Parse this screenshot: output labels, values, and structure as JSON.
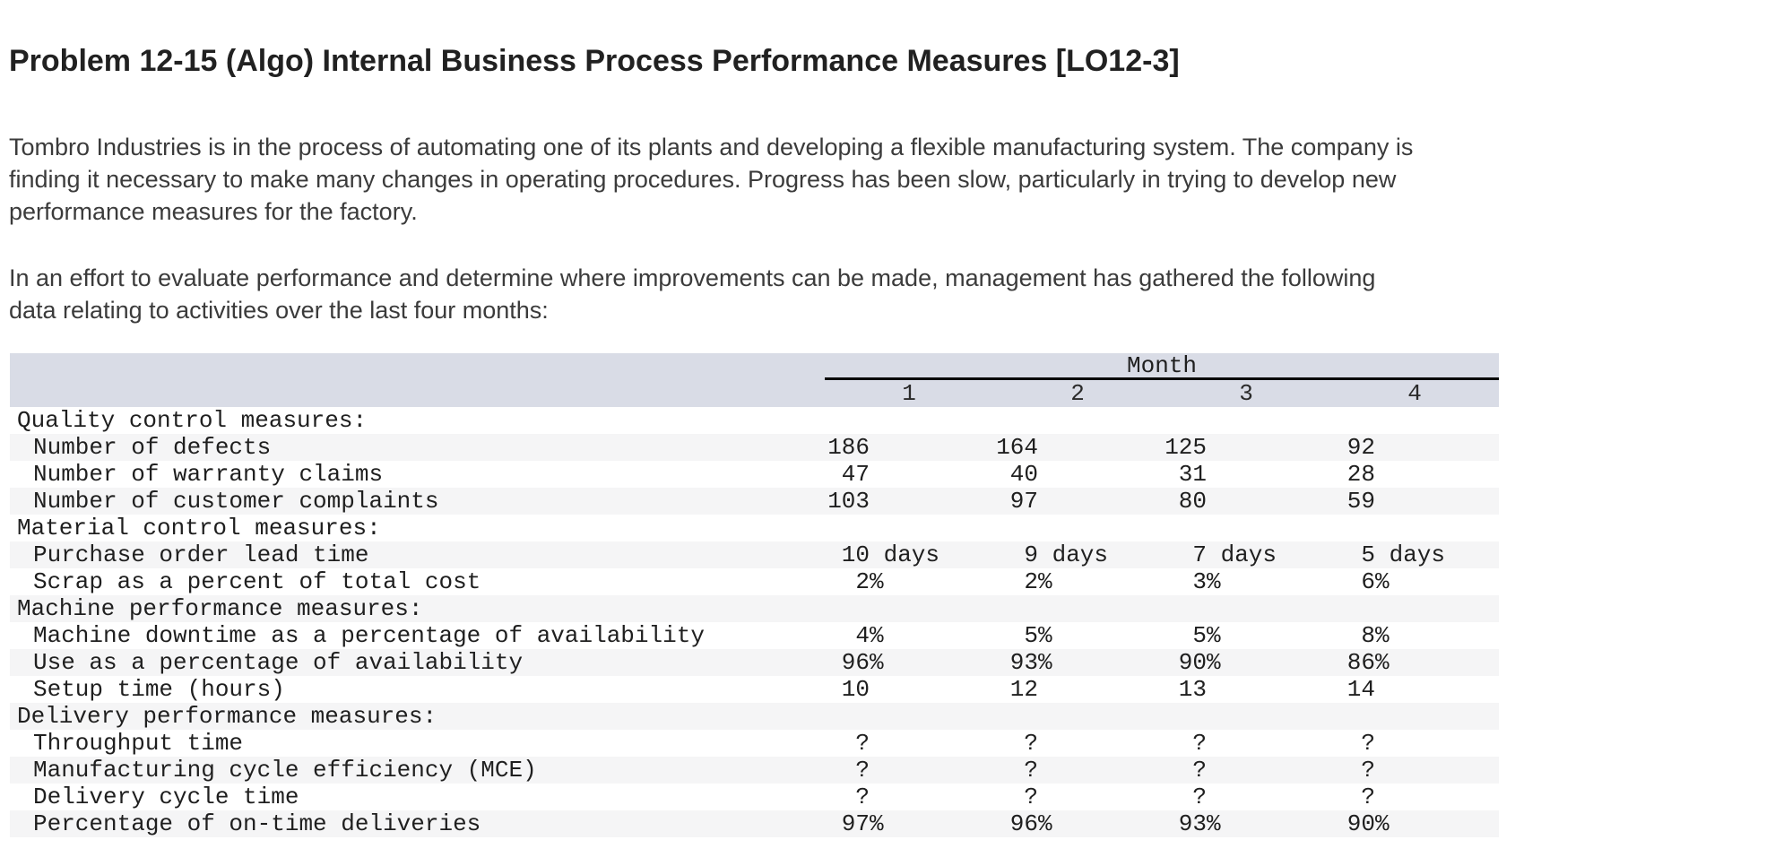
{
  "page": {
    "title": "Problem 12-15 (Algo) Internal Business Process Performance Measures [LO12-3]",
    "paragraph1": "Tombro Industries is in the process of automating one of its plants and developing a flexible manufacturing system. The company is\nfinding it necessary to make many changes in operating procedures. Progress has been slow, particularly in trying to develop new\nperformance measures for the factory.",
    "paragraph2": "In an effort to evaluate performance and determine where improvements can be made, management has gathered the following\ndata relating to activities over the last four months:"
  },
  "colors": {
    "header_background": "#d9dce6",
    "stripe_background": "#f5f5f6",
    "month_underline": "#0a0a0a",
    "title_text": "#212121",
    "body_text": "#3b3b3b",
    "table_text": "#1f1f1f"
  },
  "table": {
    "month_label": "Month",
    "month_columns": [
      "1",
      "2",
      "3",
      "4"
    ],
    "rows": [
      {
        "type": "category",
        "label": "Quality control measures:",
        "values": []
      },
      {
        "type": "item",
        "label": "Number of defects",
        "values": [
          {
            "num": "186",
            "unit": ""
          },
          {
            "num": "164",
            "unit": ""
          },
          {
            "num": "125",
            "unit": ""
          },
          {
            "num": "92",
            "unit": ""
          }
        ]
      },
      {
        "type": "item",
        "label": "Number of warranty claims",
        "values": [
          {
            "num": "47",
            "unit": ""
          },
          {
            "num": "40",
            "unit": ""
          },
          {
            "num": "31",
            "unit": ""
          },
          {
            "num": "28",
            "unit": ""
          }
        ]
      },
      {
        "type": "item",
        "label": "Number of customer complaints",
        "values": [
          {
            "num": "103",
            "unit": ""
          },
          {
            "num": "97",
            "unit": ""
          },
          {
            "num": "80",
            "unit": ""
          },
          {
            "num": "59",
            "unit": ""
          }
        ]
      },
      {
        "type": "category",
        "label": "Material control measures:",
        "values": []
      },
      {
        "type": "item",
        "label": "Purchase order lead time",
        "values": [
          {
            "num": "10",
            "unit": " days"
          },
          {
            "num": "9",
            "unit": " days"
          },
          {
            "num": "7",
            "unit": " days"
          },
          {
            "num": "5",
            "unit": " days"
          }
        ]
      },
      {
        "type": "item",
        "label": "Scrap as a percent of total cost",
        "values": [
          {
            "num": "2",
            "unit": "%"
          },
          {
            "num": "2",
            "unit": "%"
          },
          {
            "num": "3",
            "unit": "%"
          },
          {
            "num": "6",
            "unit": "%"
          }
        ]
      },
      {
        "type": "category",
        "label": "Machine performance measures:",
        "values": []
      },
      {
        "type": "item",
        "label": "Machine downtime as a percentage of availability",
        "values": [
          {
            "num": "4",
            "unit": "%"
          },
          {
            "num": "5",
            "unit": "%"
          },
          {
            "num": "5",
            "unit": "%"
          },
          {
            "num": "8",
            "unit": "%"
          }
        ]
      },
      {
        "type": "item",
        "label": "Use as a percentage of availability",
        "values": [
          {
            "num": "96",
            "unit": "%"
          },
          {
            "num": "93",
            "unit": "%"
          },
          {
            "num": "90",
            "unit": "%"
          },
          {
            "num": "86",
            "unit": "%"
          }
        ]
      },
      {
        "type": "item",
        "label": "Setup time (hours)",
        "values": [
          {
            "num": "10",
            "unit": ""
          },
          {
            "num": "12",
            "unit": ""
          },
          {
            "num": "13",
            "unit": ""
          },
          {
            "num": "14",
            "unit": ""
          }
        ]
      },
      {
        "type": "category",
        "label": "Delivery performance measures:",
        "values": []
      },
      {
        "type": "item",
        "label": "Throughput time",
        "values": [
          {
            "num": "?",
            "unit": ""
          },
          {
            "num": "?",
            "unit": ""
          },
          {
            "num": "?",
            "unit": ""
          },
          {
            "num": "?",
            "unit": ""
          }
        ]
      },
      {
        "type": "item",
        "label": "Manufacturing cycle efficiency (MCE)",
        "values": [
          {
            "num": "?",
            "unit": ""
          },
          {
            "num": "?",
            "unit": ""
          },
          {
            "num": "?",
            "unit": ""
          },
          {
            "num": "?",
            "unit": ""
          }
        ]
      },
      {
        "type": "item",
        "label": "Delivery cycle time",
        "values": [
          {
            "num": "?",
            "unit": ""
          },
          {
            "num": "?",
            "unit": ""
          },
          {
            "num": "?",
            "unit": ""
          },
          {
            "num": "?",
            "unit": ""
          }
        ]
      },
      {
        "type": "item",
        "label": "Percentage of on-time deliveries",
        "values": [
          {
            "num": "97",
            "unit": "%"
          },
          {
            "num": "96",
            "unit": "%"
          },
          {
            "num": "93",
            "unit": "%"
          },
          {
            "num": "90",
            "unit": "%"
          }
        ]
      }
    ]
  }
}
